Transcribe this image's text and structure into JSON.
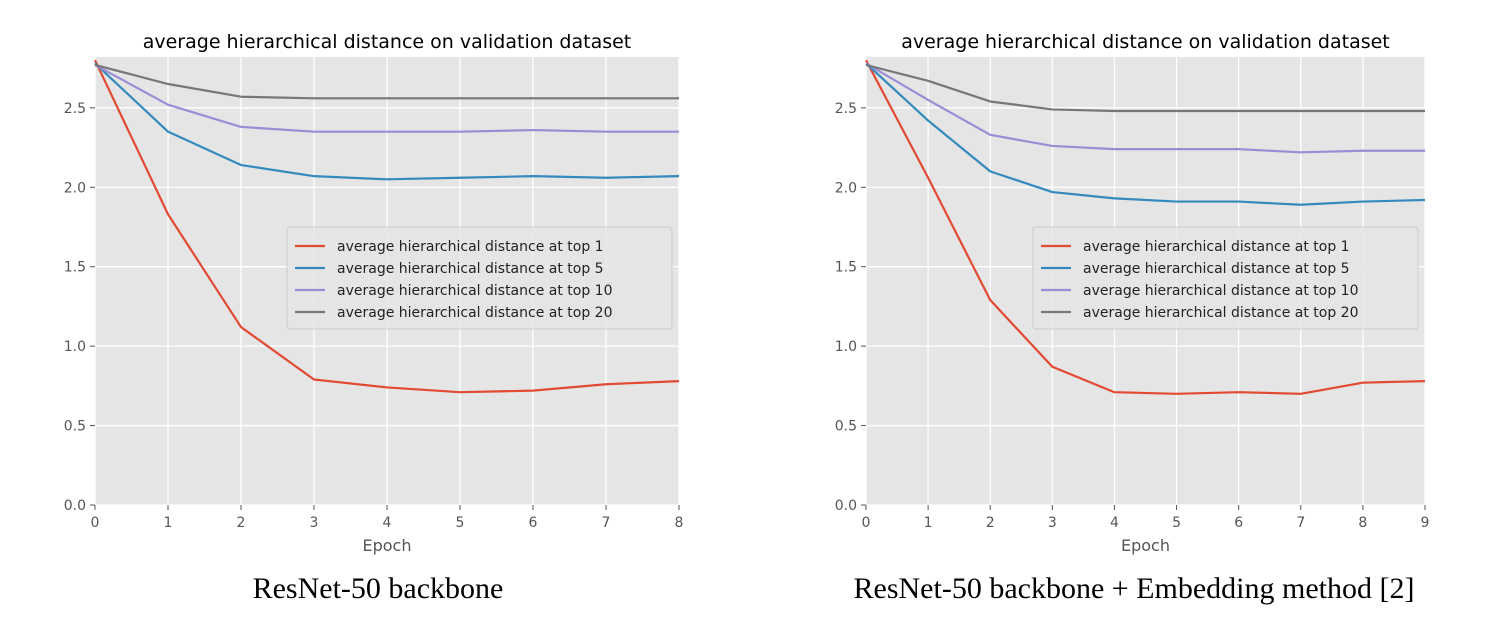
{
  "chart_data": [
    {
      "type": "line",
      "title": "average hierarchical distance on validation dataset",
      "xlabel": "Epoch",
      "ylabel": "",
      "caption": "ResNet-50 backbone",
      "xlim": [
        0,
        8
      ],
      "ylim": [
        0,
        2.82
      ],
      "x": [
        0,
        1,
        2,
        3,
        4,
        5,
        6,
        7,
        8
      ],
      "xticks": [
        "0",
        "1",
        "2",
        "3",
        "4",
        "5",
        "6",
        "7",
        "8"
      ],
      "yticks": [
        "0.0",
        "0.5",
        "1.0",
        "1.5",
        "2.0",
        "2.5"
      ],
      "ytick_values": [
        0,
        0.5,
        1.0,
        1.5,
        2.0,
        2.5
      ],
      "grid": true,
      "legend_position": "center-right",
      "series": [
        {
          "name": "average hierarchical distance at top 1",
          "color": "#E24A33",
          "values": [
            2.8,
            1.83,
            1.12,
            0.79,
            0.74,
            0.71,
            0.72,
            0.76,
            0.78
          ]
        },
        {
          "name": "average hierarchical distance at top 5",
          "color": "#348ABD",
          "values": [
            2.78,
            2.35,
            2.14,
            2.07,
            2.05,
            2.06,
            2.07,
            2.06,
            2.07
          ]
        },
        {
          "name": "average hierarchical distance at top 10",
          "color": "#988ED5",
          "values": [
            2.77,
            2.52,
            2.38,
            2.35,
            2.35,
            2.35,
            2.36,
            2.35,
            2.35
          ]
        },
        {
          "name": "average hierarchical distance at top 20",
          "color": "#777777",
          "values": [
            2.77,
            2.65,
            2.57,
            2.56,
            2.56,
            2.56,
            2.56,
            2.56,
            2.56
          ]
        }
      ]
    },
    {
      "type": "line",
      "title": "average hierarchical distance on validation dataset",
      "xlabel": "Epoch",
      "ylabel": "",
      "caption": "ResNet-50 backbone + Embedding method [2]",
      "xlim": [
        0,
        9
      ],
      "ylim": [
        0,
        2.82
      ],
      "x": [
        0,
        1,
        2,
        3,
        4,
        5,
        6,
        7,
        8,
        9
      ],
      "xticks": [
        "0",
        "1",
        "2",
        "3",
        "4",
        "5",
        "6",
        "7",
        "8",
        "9"
      ],
      "yticks": [
        "0.0",
        "0.5",
        "1.0",
        "1.5",
        "2.0",
        "2.5"
      ],
      "ytick_values": [
        0,
        0.5,
        1.0,
        1.5,
        2.0,
        2.5
      ],
      "grid": true,
      "legend_position": "center-right",
      "series": [
        {
          "name": "average hierarchical distance at top 1",
          "color": "#E24A33",
          "values": [
            2.8,
            2.06,
            1.29,
            0.87,
            0.71,
            0.7,
            0.71,
            0.7,
            0.77,
            0.78
          ]
        },
        {
          "name": "average hierarchical distance at top 5",
          "color": "#348ABD",
          "values": [
            2.78,
            2.42,
            2.1,
            1.97,
            1.93,
            1.91,
            1.91,
            1.89,
            1.91,
            1.92
          ]
        },
        {
          "name": "average hierarchical distance at top 10",
          "color": "#988ED5",
          "values": [
            2.78,
            2.55,
            2.33,
            2.26,
            2.24,
            2.24,
            2.24,
            2.22,
            2.23,
            2.23
          ]
        },
        {
          "name": "average hierarchical distance at top 20",
          "color": "#777777",
          "values": [
            2.77,
            2.67,
            2.54,
            2.49,
            2.48,
            2.48,
            2.48,
            2.48,
            2.48,
            2.48
          ]
        }
      ]
    }
  ]
}
